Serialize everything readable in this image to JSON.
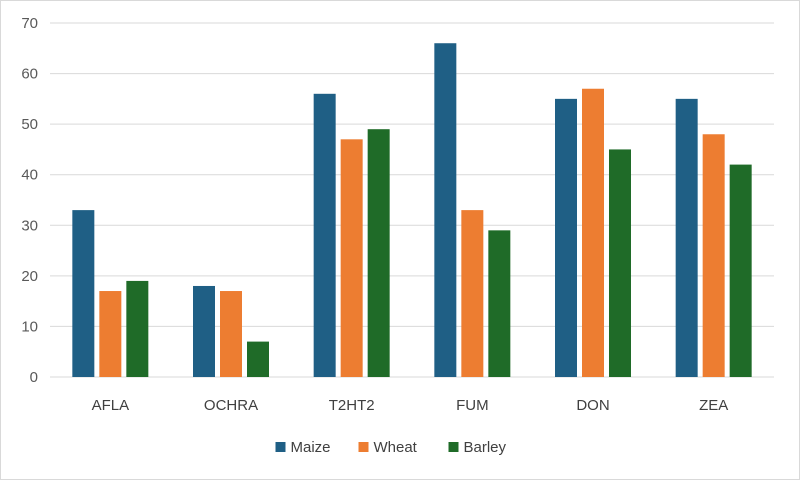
{
  "chart_data": {
    "type": "bar",
    "title": "",
    "xlabel": "",
    "ylabel": "",
    "categories": [
      "AFLA",
      "OCHRA",
      "T2HT2",
      "FUM",
      "DON",
      "ZEA"
    ],
    "series": [
      {
        "name": "Maize",
        "color": "#1f5f85",
        "values": [
          33,
          18,
          56,
          66,
          55,
          55
        ]
      },
      {
        "name": "Wheat",
        "color": "#ed7d31",
        "values": [
          17,
          17,
          47,
          33,
          57,
          48
        ]
      },
      {
        "name": "Barley",
        "color": "#1f6b28",
        "values": [
          19,
          7,
          49,
          29,
          45,
          42
        ]
      }
    ],
    "ylim": [
      0,
      70
    ],
    "yticks": [
      0,
      10,
      20,
      30,
      40,
      50,
      60,
      70
    ],
    "grid": true,
    "legend_position": "bottom"
  }
}
